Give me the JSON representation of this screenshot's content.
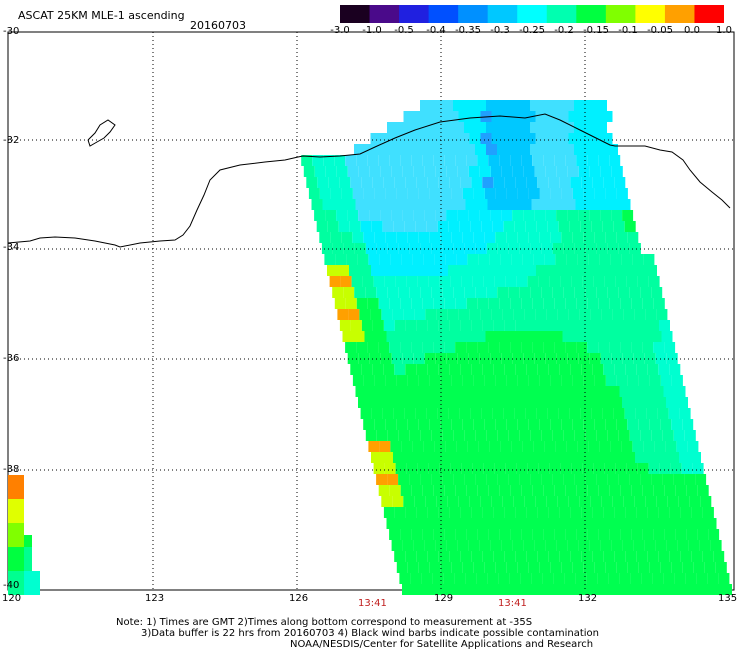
{
  "title": "ASCAT 25KM MLE-1 ascending",
  "date": "20160703",
  "colorbar": {
    "ticks": [
      "-3.0",
      "-1.0",
      "-0.5",
      "-0.4",
      "-0.35",
      "-0.3",
      "-0.25",
      "-0.2",
      "-0.15",
      "-0.1",
      "-0.05",
      "0.0",
      "1.0"
    ],
    "colors": [
      "#1a0020",
      "#4a0a8a",
      "#2020e0",
      "#0050ff",
      "#0090ff",
      "#00c8ff",
      "#00ffff",
      "#00ffb0",
      "#00ff40",
      "#80ff00",
      "#ffff00",
      "#ffa000",
      "#ff0000"
    ]
  },
  "axes": {
    "lat_labels": [
      "-30",
      "-32",
      "-34",
      "-36",
      "-38",
      "-40"
    ],
    "lon_labels": [
      "120",
      "123",
      "126",
      "129",
      "132",
      "135"
    ]
  },
  "time_labels": [
    "13:41",
    "13:41"
  ],
  "notes": [
    "Note: 1) Times are GMT 2)Times along bottom correspond to measurement at -35S",
    "3)Data buffer is 22 hrs from 20160703 4) Black wind barbs indicate possible contamination",
    "NOAA/NESDIS/Center for Satellite Applications and Research"
  ]
}
